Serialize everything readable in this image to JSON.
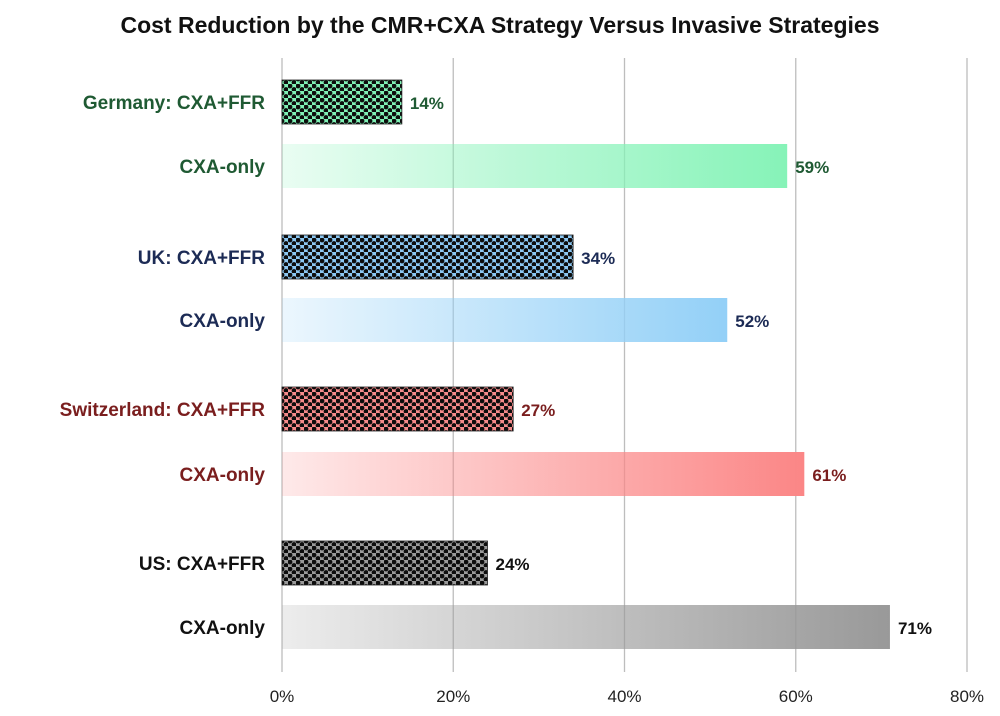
{
  "chart_data": {
    "type": "bar",
    "orientation": "horizontal",
    "title": "Cost Reduction by the CMR+CXA Strategy Versus Invasive Strategies",
    "xlim": [
      0,
      80
    ],
    "xticks": [
      "0%",
      "20%",
      "40%",
      "60%",
      "80%"
    ],
    "xtick_values": [
      0,
      20,
      40,
      60,
      80
    ],
    "grid": true,
    "legend": "none",
    "groups": [
      {
        "country": "Germany",
        "color": "#1f5a33",
        "bars": [
          {
            "label": "Germany: CXA+FFR",
            "value": 14,
            "value_label": "14%",
            "style": "dotted",
            "fill": "#7ff0b5"
          },
          {
            "label": "CXA-only",
            "value": 59,
            "value_label": "59%",
            "style": "gradient",
            "fill": "#86f3b8"
          }
        ]
      },
      {
        "country": "UK",
        "color": "#1c2b55",
        "bars": [
          {
            "label": "UK: CXA+FFR",
            "value": 34,
            "value_label": "34%",
            "style": "dotted",
            "fill": "#8cc7f2"
          },
          {
            "label": "CXA-only",
            "value": 52,
            "value_label": "52%",
            "style": "gradient",
            "fill": "#93d0f7"
          }
        ]
      },
      {
        "country": "Switzerland",
        "color": "#7a1e1e",
        "bars": [
          {
            "label": "Switzerland: CXA+FFR",
            "value": 27,
            "value_label": "27%",
            "style": "dotted",
            "fill": "#f58a8a"
          },
          {
            "label": "CXA-only",
            "value": 61,
            "value_label": "61%",
            "style": "gradient",
            "fill": "#fb8686"
          }
        ]
      },
      {
        "country": "US",
        "color": "#111111",
        "bars": [
          {
            "label": "US: CXA+FFR",
            "value": 24,
            "value_label": "24%",
            "style": "dotted",
            "fill": "#9a9a9a"
          },
          {
            "label": "CXA-only",
            "value": 71,
            "value_label": "71%",
            "style": "gradient",
            "fill": "#999999"
          }
        ]
      }
    ]
  }
}
